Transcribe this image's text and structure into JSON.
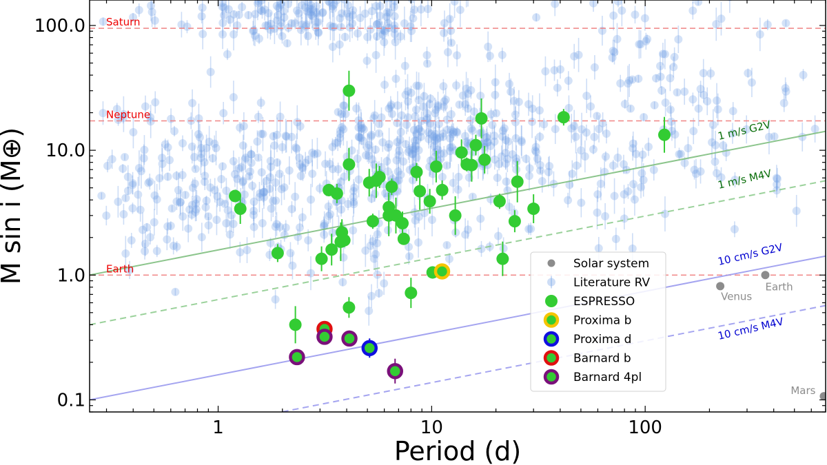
{
  "chart_data": {
    "type": "scatter",
    "xlabel": "Period (d)",
    "ylabel": "M sin i (M⊕)",
    "xscale": "log",
    "yscale": "log",
    "xlim": [
      0.25,
      700
    ],
    "ylim": [
      0.08,
      160
    ],
    "x_ticks": [
      {
        "v": 1,
        "label": "1"
      },
      {
        "v": 10,
        "label": "10"
      },
      {
        "v": 100,
        "label": "100"
      }
    ],
    "y_ticks": [
      {
        "v": 0.1,
        "label": "0.1"
      },
      {
        "v": 1,
        "label": "1.0"
      },
      {
        "v": 10,
        "label": "10.0"
      },
      {
        "v": 100,
        "label": "100.0"
      }
    ],
    "reference_masses": [
      {
        "name": "Saturn",
        "value": 95
      },
      {
        "name": "Neptune",
        "value": 17.2
      },
      {
        "name": "Earth",
        "value": 1.0
      }
    ],
    "rv_limits": [
      {
        "label": "1 m/s G2V",
        "p0": 0.25,
        "m0": 1.0,
        "p1": 700,
        "m1": 14.2,
        "color": "#7fbf7f",
        "labelcolor": "#0a6e0a",
        "dash": false
      },
      {
        "label": "1 m/s M4V",
        "p0": 0.25,
        "m0": 0.4,
        "p1": 700,
        "m1": 5.7,
        "color": "#8fcc8f",
        "labelcolor": "#0a6e0a",
        "dash": true
      },
      {
        "label": "10 cm/s G2V",
        "p0": 0.25,
        "m0": 0.1,
        "p1": 700,
        "m1": 1.42,
        "color": "#9a9aee",
        "labelcolor": "#0000d0",
        "dash": false
      },
      {
        "label": "10 cm/s M4V",
        "p0": 0.25,
        "m0": 0.04,
        "p1": 700,
        "m1": 0.57,
        "color": "#9a9aee",
        "labelcolor": "#0000d0",
        "dash": true
      }
    ],
    "solar_system": [
      {
        "name": "Venus",
        "p": 224.7,
        "m": 0.815
      },
      {
        "name": "Earth",
        "p": 365.25,
        "m": 1.0
      },
      {
        "name": "Mars",
        "p": 687,
        "m": 0.107
      }
    ],
    "espresso": [
      [
        1.2,
        4.3
      ],
      [
        1.27,
        3.4
      ],
      [
        1.9,
        1.5
      ],
      [
        2.3,
        0.4
      ],
      [
        3.05,
        1.35
      ],
      [
        3.3,
        4.8
      ],
      [
        3.4,
        1.6
      ],
      [
        3.6,
        4.5
      ],
      [
        3.75,
        1.85
      ],
      [
        3.8,
        2.2
      ],
      [
        3.9,
        1.9
      ],
      [
        4.1,
        7.7
      ],
      [
        4.1,
        0.55
      ],
      [
        4.1,
        30
      ],
      [
        5.1,
        5.5
      ],
      [
        5.3,
        2.7
      ],
      [
        5.5,
        5.7
      ],
      [
        5.7,
        6.1
      ],
      [
        6.3,
        3.0
      ],
      [
        6.3,
        3.5
      ],
      [
        6.5,
        5.1
      ],
      [
        6.8,
        3.0
      ],
      [
        7.3,
        2.6
      ],
      [
        7.4,
        1.95
      ],
      [
        8.0,
        0.72
      ],
      [
        8.5,
        6.7
      ],
      [
        8.8,
        4.7
      ],
      [
        9.8,
        3.9
      ],
      [
        10.1,
        1.05
      ],
      [
        10.5,
        7.4
      ],
      [
        11.2,
        4.8
      ],
      [
        12.9,
        3.0
      ],
      [
        13.8,
        9.6
      ],
      [
        14.6,
        7.7
      ],
      [
        15.4,
        7.6
      ],
      [
        16.1,
        11.0
      ],
      [
        17.1,
        18.0
      ],
      [
        17.7,
        8.4
      ],
      [
        20.8,
        3.9
      ],
      [
        21.5,
        1.35
      ],
      [
        24.5,
        2.7
      ],
      [
        25.2,
        5.6
      ],
      [
        30.0,
        3.4
      ],
      [
        41.5,
        18.4
      ],
      [
        123,
        13.3
      ]
    ],
    "proxima_b": [
      11.19,
      1.07
    ],
    "proxima_d": [
      5.12,
      0.26
    ],
    "barnard_b": [
      3.15,
      0.37
    ],
    "barnard_4pl": [
      [
        2.34,
        0.22
      ],
      [
        3.15,
        0.32
      ],
      [
        4.12,
        0.31
      ],
      [
        6.74,
        0.17
      ]
    ],
    "literature_rv_note": "dense background scatter of literature RV planets with vertical error bars",
    "legend": [
      {
        "key": "solar",
        "label": "Solar system"
      },
      {
        "key": "lit",
        "label": "Literature RV"
      },
      {
        "key": "esp",
        "label": "ESPRESSO"
      },
      {
        "key": "pb",
        "label": "Proxima b"
      },
      {
        "key": "pd",
        "label": "Proxima d"
      },
      {
        "key": "bb",
        "label": "Barnard b"
      },
      {
        "key": "b4",
        "label": "Barnard 4pl"
      }
    ],
    "colors": {
      "espresso": "#33cc33",
      "literature": "#6f9fe6",
      "solar": "#8c8c8c",
      "reference_line": "#f08080",
      "reference_text": "#ee0000",
      "proxima_b_ring": "#f5c400",
      "proxima_d_ring": "#1010e0",
      "barnard_b_ring": "#e01010",
      "barnard_4pl_ring": "#7a107a"
    }
  }
}
